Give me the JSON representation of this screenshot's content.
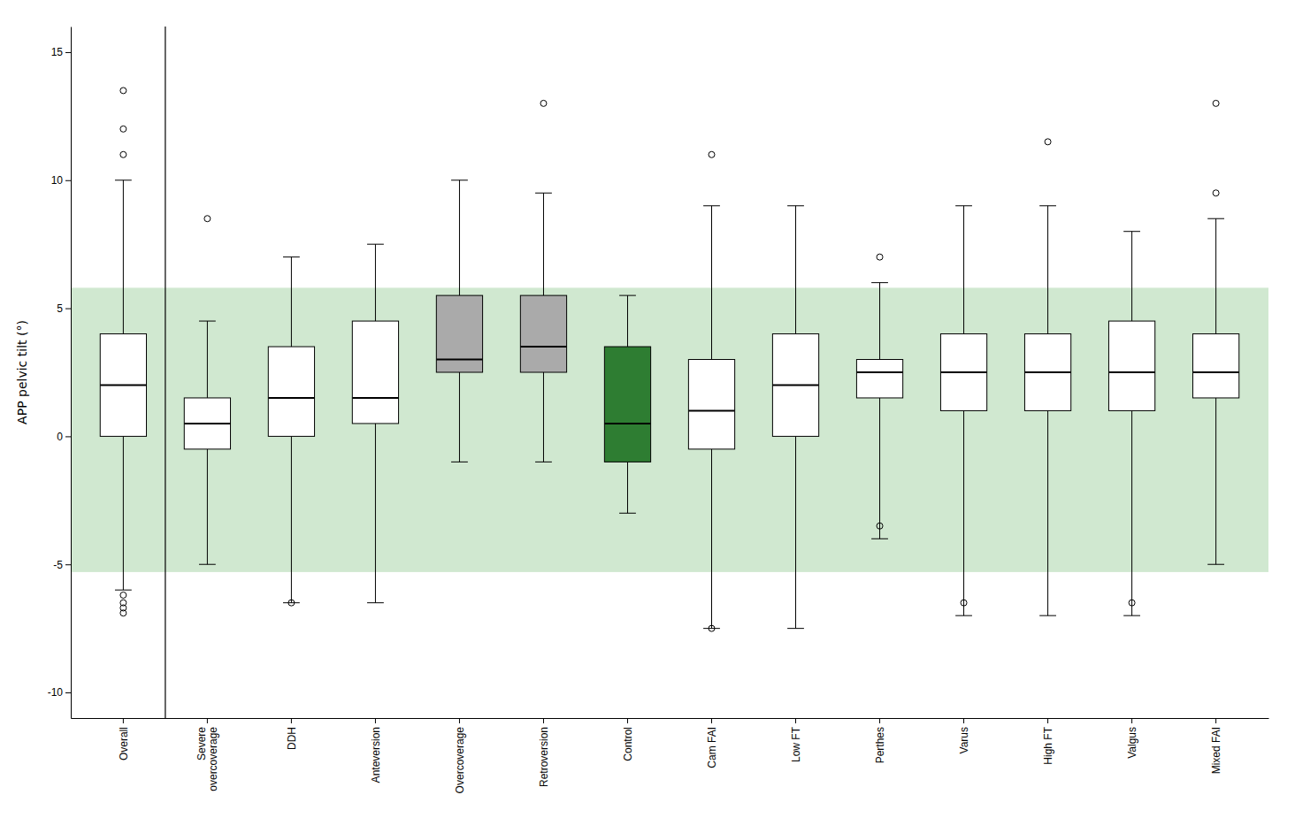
{
  "chart_data": {
    "type": "box",
    "categories": [
      "Overall",
      "Severe\novercoverage",
      "DDH",
      "Anteversion",
      "Overcoverage",
      "Retroversion",
      "Control",
      "Cam FAI",
      "Low FT",
      "Perthes",
      "Varus",
      "High FT",
      "Valgus",
      "Mixed FAI"
    ],
    "boxes": [
      {
        "med": 2.0,
        "q1": 0.0,
        "q3": 4.0,
        "whislo": -6.0,
        "whishi": 10.0,
        "fliers_hi": [
          13.5,
          12.0,
          11.0
        ],
        "fliers_lo": [
          -6.2,
          -6.5,
          -6.7,
          -6.9
        ]
      },
      {
        "med": 0.5,
        "q1": -0.5,
        "q3": 1.5,
        "whislo": -5.0,
        "whishi": 4.5,
        "fliers_hi": [
          8.5
        ],
        "fliers_lo": []
      },
      {
        "med": 1.5,
        "q1": 0.0,
        "q3": 3.5,
        "whislo": -6.5,
        "whishi": 7.0,
        "fliers_hi": [],
        "fliers_lo": [
          -6.5
        ]
      },
      {
        "med": 1.5,
        "q1": 0.5,
        "q3": 4.5,
        "whislo": -6.5,
        "whishi": 7.5,
        "fliers_hi": [],
        "fliers_lo": []
      },
      {
        "med": 3.0,
        "q1": 2.5,
        "q3": 5.5,
        "whislo": -1.0,
        "whishi": 10.0,
        "fliers_hi": [],
        "fliers_lo": []
      },
      {
        "med": 3.5,
        "q1": 2.5,
        "q3": 5.5,
        "whislo": -1.0,
        "whishi": 9.5,
        "fliers_hi": [
          13.0
        ],
        "fliers_lo": []
      },
      {
        "med": 0.5,
        "q1": -1.0,
        "q3": 3.5,
        "whislo": -3.0,
        "whishi": 5.5,
        "fliers_hi": [],
        "fliers_lo": []
      },
      {
        "med": 1.0,
        "q1": -0.5,
        "q3": 3.0,
        "whislo": -7.5,
        "whishi": 9.0,
        "fliers_hi": [
          11.0
        ],
        "fliers_lo": [
          -7.5
        ]
      },
      {
        "med": 2.0,
        "q1": 0.0,
        "q3": 4.0,
        "whislo": -7.5,
        "whishi": 9.0,
        "fliers_hi": [],
        "fliers_lo": []
      },
      {
        "med": 2.5,
        "q1": 1.5,
        "q3": 3.0,
        "whislo": -4.0,
        "whishi": 6.0,
        "fliers_hi": [
          7.0
        ],
        "fliers_lo": [
          -3.5
        ]
      },
      {
        "med": 2.5,
        "q1": 1.0,
        "q3": 4.0,
        "whislo": -7.0,
        "whishi": 9.0,
        "fliers_hi": [],
        "fliers_lo": [
          -6.5
        ]
      },
      {
        "med": 2.5,
        "q1": 1.0,
        "q3": 4.0,
        "whislo": -7.0,
        "whishi": 9.0,
        "fliers_hi": [
          11.5
        ],
        "fliers_lo": []
      },
      {
        "med": 2.5,
        "q1": 1.0,
        "q3": 4.5,
        "whislo": -7.0,
        "whishi": 8.0,
        "fliers_hi": [],
        "fliers_lo": [
          -6.5
        ]
      },
      {
        "med": 2.5,
        "q1": 1.5,
        "q3": 4.0,
        "whislo": -5.0,
        "whishi": 8.5,
        "fliers_hi": [
          13.0,
          9.5
        ],
        "fliers_lo": []
      }
    ],
    "colors": [
      "white",
      "white",
      "white",
      "white",
      "#aaaaaa",
      "#aaaaaa",
      "#2e7d32",
      "white",
      "white",
      "white",
      "white",
      "white",
      "white",
      "white"
    ],
    "band": {
      "ymin": -5.3,
      "ymax": 5.8,
      "color": "#d0e8d0"
    },
    "ylabel": "APP pelvic tilt (°)",
    "ylim": [
      -11,
      16
    ],
    "yticks": [
      -10,
      -5,
      0,
      5,
      10,
      15
    ],
    "grid": false
  }
}
